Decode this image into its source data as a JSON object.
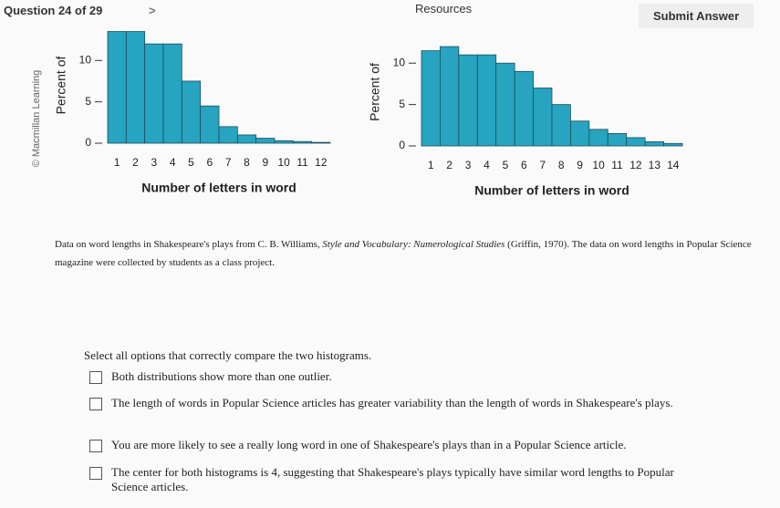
{
  "header": {
    "question": "Question 24 of 29",
    "resources": "Resources",
    "submit": "Submit Answer"
  },
  "copyright": "© Macmillan Learning",
  "chart_data": [
    {
      "type": "bar",
      "ylabel": "Percent of",
      "xlabel": "Number of letters in word",
      "categories": [
        "1",
        "2",
        "3",
        "4",
        "5",
        "6",
        "7",
        "8",
        "9",
        "10",
        "11",
        "12"
      ],
      "values": [
        13.5,
        13.5,
        12,
        12,
        7.5,
        4.5,
        2,
        1,
        0.6,
        0.3,
        0.2,
        0.1
      ],
      "color": "#27a4c0",
      "ylim": [
        0,
        14
      ],
      "yticks": [
        0,
        5,
        10
      ]
    },
    {
      "type": "bar",
      "ylabel": "Percent of",
      "xlabel": "Number of letters in word",
      "categories": [
        "1",
        "2",
        "3",
        "4",
        "5",
        "6",
        "7",
        "8",
        "9",
        "10",
        "11",
        "12",
        "13",
        "14"
      ],
      "values": [
        11.5,
        12,
        11,
        11,
        10,
        9,
        7,
        5,
        3,
        2,
        1.5,
        1,
        0.5,
        0.3
      ],
      "color": "#27a4c0",
      "ylim": [
        0,
        13
      ],
      "yticks": [
        0,
        5,
        10
      ]
    }
  ],
  "caption": {
    "pre": "Data on word lengths in Shakespeare's plays from C. B. Williams, ",
    "italic": "Style and Vocabulary: Numerological Studies",
    "post": " (Griffin, 1970). The data on word lengths in Popular Science magazine were collected by students as a class project."
  },
  "question": "Select all options that correctly compare the two histograms.",
  "options": [
    "Both distributions show more than one outlier.",
    "The length of words in Popular Science articles has greater variability than the length of words in Shakespeare's plays.",
    "You are more likely to see a really long word in one of Shakespeare's plays than in a Popular Science article.",
    "The center for both histograms is 4, suggesting that Shakespeare's plays typically have similar word lengths to Popular Science articles."
  ]
}
